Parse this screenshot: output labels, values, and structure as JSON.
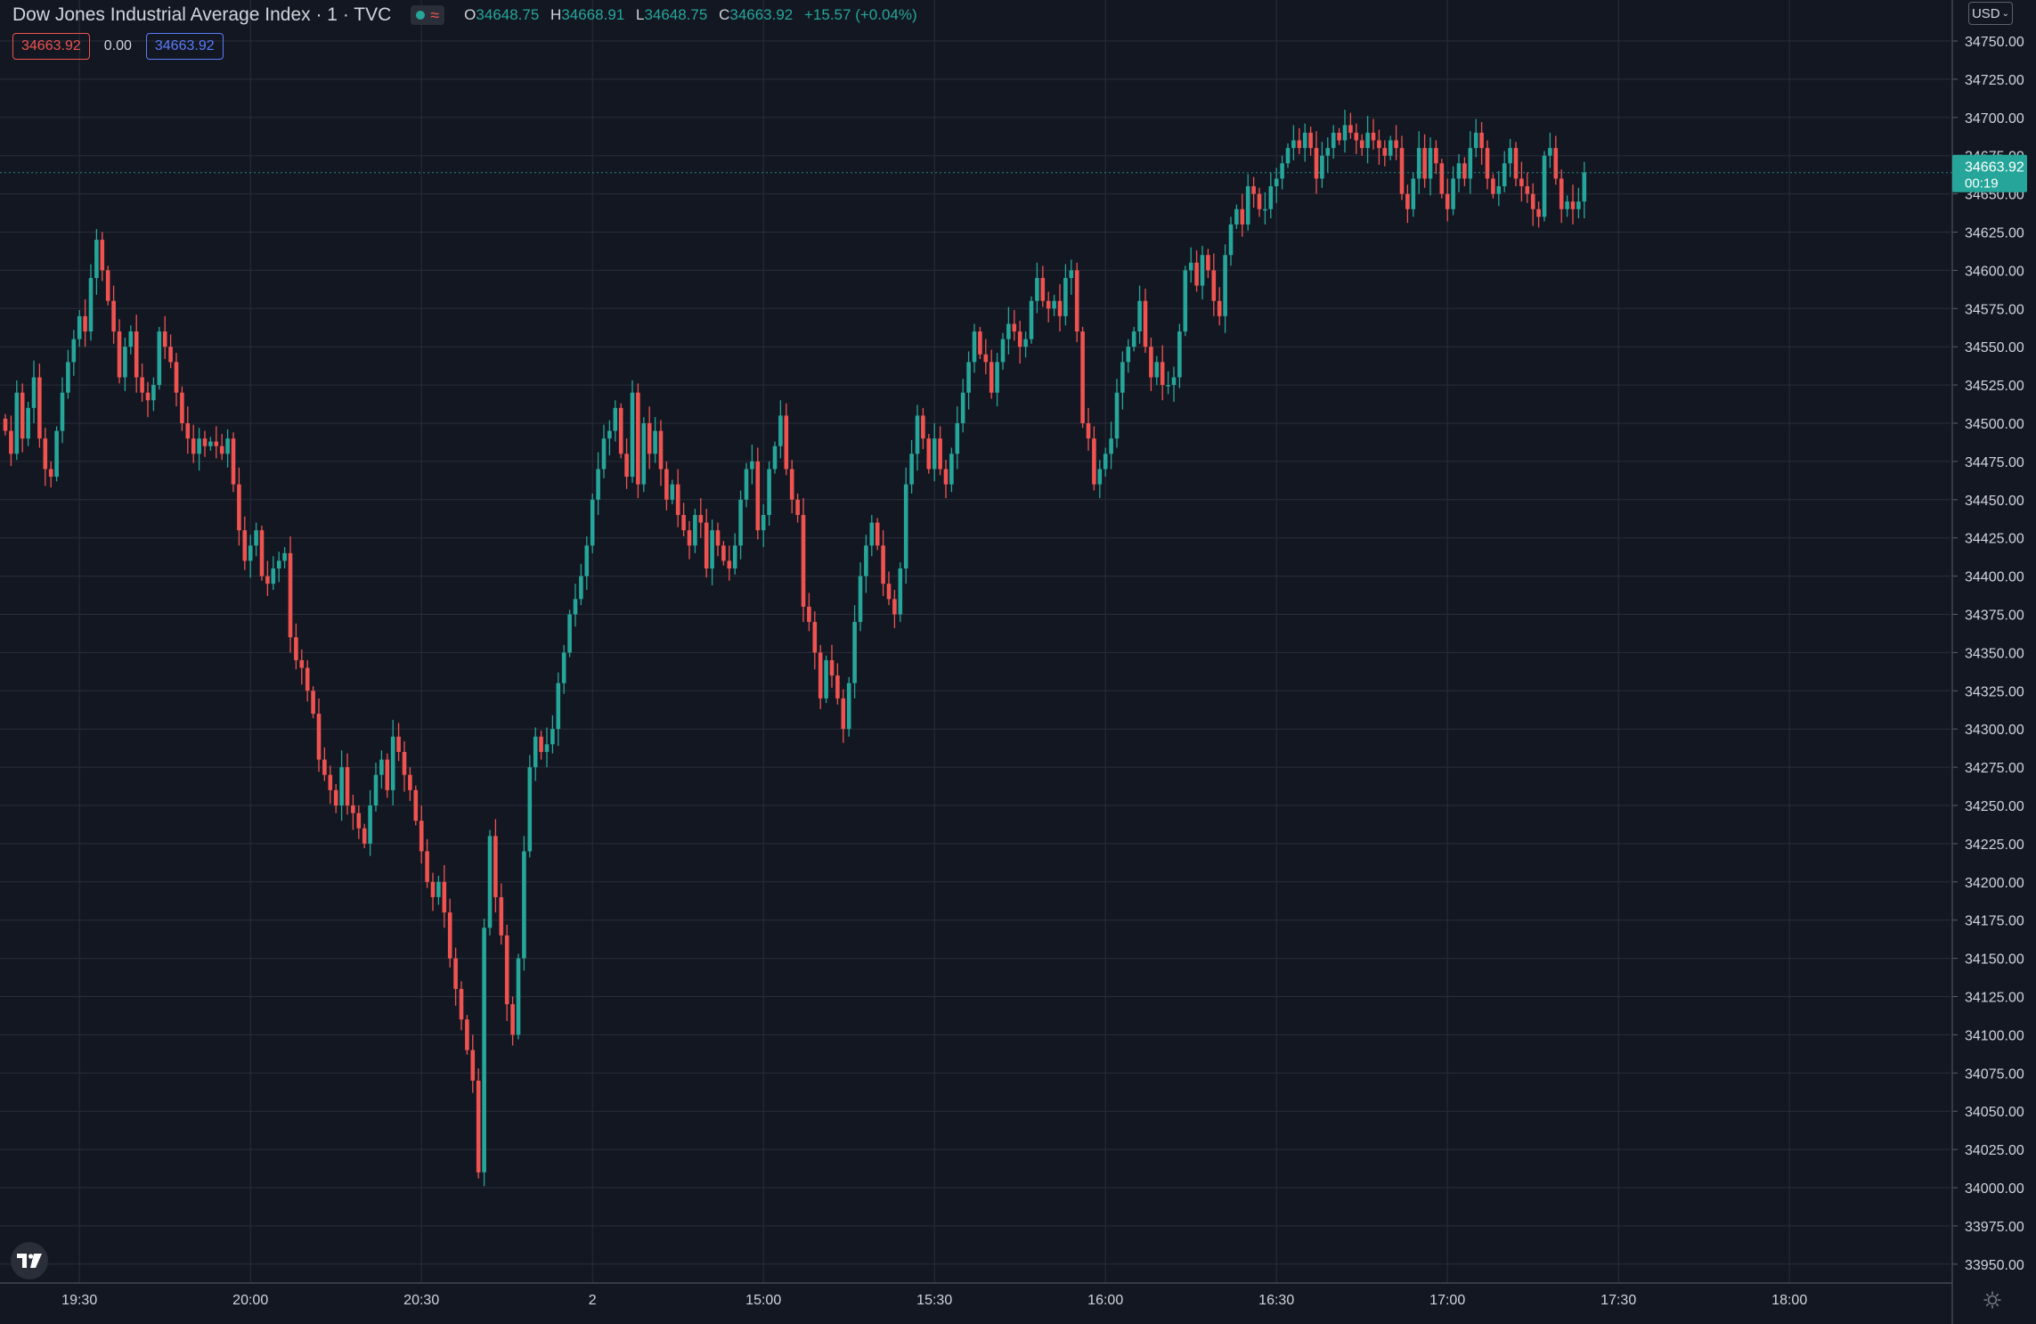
{
  "header": {
    "symbol_title": "Dow Jones Industrial Average Index · 1 · TVC",
    "status_icon": "market-open-dot-icon",
    "ohlc": {
      "o_label": "O",
      "o_value": "34648.75",
      "h_label": "H",
      "h_value": "34668.91",
      "l_label": "L",
      "l_value": "34648.75",
      "c_label": "C",
      "c_value": "34663.92",
      "change": "+15.57 (+0.04%)"
    },
    "sell_price": "34663.92",
    "spread": "0.00",
    "buy_price": "34663.92"
  },
  "price_scale": {
    "currency": "USD",
    "current_price": "34663.92",
    "countdown": "00:19"
  },
  "colors": {
    "background": "#131722",
    "grid": "#2a2e39",
    "up": "#26a69a",
    "down": "#ef5350",
    "text": "#d1d4dc",
    "buy_accent": "#5b7cfa"
  },
  "chart_data": {
    "type": "candlestick",
    "title": "Dow Jones Industrial Average Index · 1 · TVC",
    "interval": "1 minute",
    "ylim": [
      33940,
      34770
    ],
    "y_ticks": [
      33950,
      33975,
      34000,
      34025,
      34050,
      34075,
      34100,
      34125,
      34150,
      34175,
      34200,
      34225,
      34250,
      34275,
      34300,
      34325,
      34350,
      34375,
      34400,
      34425,
      34450,
      34475,
      34500,
      34525,
      34550,
      34575,
      34600,
      34625,
      34650,
      34675,
      34700,
      34725,
      34750
    ],
    "y_tick_labels": [
      "33950.00",
      "33975.00",
      "34000.00",
      "34025.00",
      "34050.00",
      "34075.00",
      "34100.00",
      "34125.00",
      "34150.00",
      "34175.00",
      "34200.00",
      "34225.00",
      "34250.00",
      "34275.00",
      "34300.00",
      "34325.00",
      "34350.00",
      "34375.00",
      "34400.00",
      "34425.00",
      "34450.00",
      "34475.00",
      "34500.00",
      "34525.00",
      "34550.00",
      "34575.00",
      "34600.00",
      "34625.00",
      "34650.00",
      "34675.00",
      "34700.00",
      "34725.00",
      "34750.00"
    ],
    "x_ticks": [
      {
        "label": "19:30",
        "bar": 13
      },
      {
        "label": "20:00",
        "bar": 43
      },
      {
        "label": "20:30",
        "bar": 73
      },
      {
        "label": "2",
        "bar": 103
      },
      {
        "label": "15:00",
        "bar": 133
      },
      {
        "label": "15:30",
        "bar": 163
      },
      {
        "label": "16:00",
        "bar": 193
      },
      {
        "label": "16:30",
        "bar": 223
      },
      {
        "label": "17:00",
        "bar": 253
      },
      {
        "label": "17:30",
        "bar": 283
      },
      {
        "label": "18:00",
        "bar": 313
      }
    ],
    "closes": [
      34495,
      34480,
      34520,
      34490,
      34510,
      34530,
      34490,
      34470,
      34465,
      34495,
      34520,
      34540,
      34555,
      34570,
      34560,
      34595,
      34620,
      34600,
      34580,
      34560,
      34530,
      34550,
      34560,
      34530,
      34520,
      34515,
      34525,
      34560,
      34550,
      34540,
      34520,
      34500,
      34490,
      34480,
      34490,
      34485,
      34488,
      34485,
      34480,
      34490,
      34460,
      34430,
      34410,
      34420,
      34430,
      34400,
      34395,
      34405,
      34410,
      34415,
      34360,
      34345,
      34340,
      34325,
      34310,
      34280,
      34270,
      34260,
      34250,
      34275,
      34250,
      34245,
      34235,
      34225,
      34250,
      34270,
      34280,
      34260,
      34295,
      34285,
      34270,
      34260,
      34240,
      34220,
      34200,
      34190,
      34200,
      34180,
      34150,
      34130,
      34110,
      34090,
      34070,
      34010,
      34170,
      34230,
      34190,
      34165,
      34120,
      34100,
      34150,
      34220,
      34275,
      34295,
      34285,
      34290,
      34300,
      34330,
      34350,
      34375,
      34385,
      34400,
      34420,
      34450,
      34470,
      34490,
      34495,
      34510,
      34480,
      34465,
      34520,
      34460,
      34500,
      34480,
      34495,
      34470,
      34450,
      34460,
      34440,
      34430,
      34420,
      34440,
      34435,
      34405,
      34430,
      34420,
      34410,
      34405,
      34420,
      34450,
      34470,
      34475,
      34430,
      34440,
      34470,
      34485,
      34505,
      34470,
      34450,
      34440,
      34380,
      34370,
      34350,
      34320,
      34345,
      34335,
      34320,
      34300,
      34330,
      34370,
      34400,
      34420,
      34435,
      34420,
      34395,
      34385,
      34375,
      34405,
      34460,
      34480,
      34505,
      34490,
      34470,
      34490,
      34470,
      34460,
      34480,
      34500,
      34520,
      34540,
      34560,
      34545,
      34540,
      34520,
      34540,
      34555,
      34565,
      34560,
      34550,
      34555,
      34580,
      34595,
      34580,
      34575,
      34580,
      34570,
      34595,
      34600,
      34560,
      34500,
      34490,
      34460,
      34470,
      34480,
      34490,
      34520,
      34540,
      34550,
      34560,
      34580,
      34550,
      34530,
      34540,
      34525,
      34525,
      34530,
      34560,
      34600,
      34605,
      34590,
      34610,
      34600,
      34580,
      34570,
      34610,
      34630,
      34640,
      34630,
      34655,
      34650,
      34640,
      34640,
      34655,
      34660,
      34670,
      34680,
      34685,
      34680,
      34690,
      34680,
      34660,
      34675,
      34680,
      34690,
      34685,
      34695,
      34690,
      34685,
      34680,
      34690,
      34685,
      34680,
      34675,
      34685,
      34680,
      34650,
      34640,
      34660,
      34680,
      34660,
      34680,
      34670,
      34650,
      34640,
      34660,
      34670,
      34660,
      34680,
      34690,
      34680,
      34660,
      34650,
      34655,
      34670,
      34680,
      34660,
      34655,
      34650,
      34640,
      34635,
      34675,
      34680,
      34660,
      34640,
      34645,
      34640,
      34645,
      34663.92
    ]
  }
}
